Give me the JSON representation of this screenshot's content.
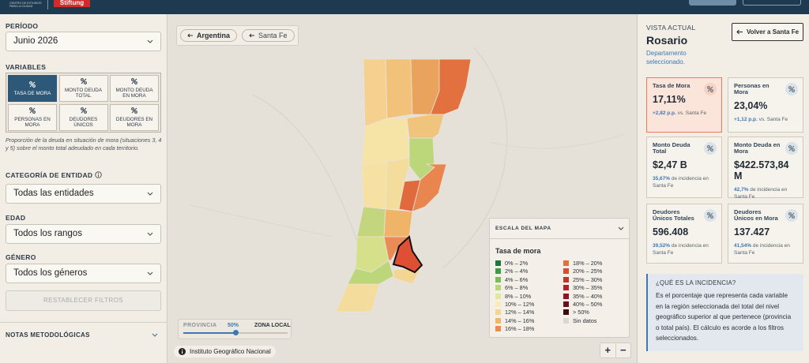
{
  "header": {
    "brand": "Stiftung",
    "org": "CENTRO DE ESTUDIOS PARA LA CIUDAD"
  },
  "sidebar": {
    "period_label": "PERÍODO",
    "period": "Junio 2026",
    "variables_label": "VARIABLES",
    "variables": [
      "TASA DE MORA",
      "MONTO DEUDA TOTAL",
      "MONTO DEUDA EN MORA",
      "PERSONAS EN MORA",
      "DEUDORES ÚNICOS",
      "DEUDORES EN MORA"
    ],
    "variable_description": "Proporción de la deuda en situación de mora (situaciones 3, 4 y 5) sobre el monto total adeudado en cada territorio.",
    "entity_label": "CATEGORÍA DE ENTIDAD",
    "entity": "Todas las entidades",
    "age_label": "EDAD",
    "age": "Todos los rangos",
    "gender_label": "GÉNERO",
    "gender": "Todos los géneros",
    "reset": "RESTABLECER FILTROS",
    "notes": "NOTAS METODOLÓGICAS"
  },
  "map": {
    "breadcrumbs": [
      "Argentina",
      "Santa Fe"
    ],
    "slider": {
      "left": "PROVINCIA",
      "value": "50%",
      "right": "ZONA LOCAL"
    },
    "attribution": "Instituto Geográfico Nacional",
    "zoom_in": "+",
    "zoom_out": "−",
    "legend": {
      "header": "ESCALA DEL MAPA",
      "title": "Tasa de mora",
      "items": [
        {
          "label": "0% – 2%",
          "color": "#1a7a3a"
        },
        {
          "label": "2% – 4%",
          "color": "#3f9a47"
        },
        {
          "label": "4% – 6%",
          "color": "#7cbb5c"
        },
        {
          "label": "6% – 8%",
          "color": "#b9d874"
        },
        {
          "label": "8% – 10%",
          "color": "#e3e89a"
        },
        {
          "label": "10% – 12%",
          "color": "#f8edb6"
        },
        {
          "label": "12% – 14%",
          "color": "#f5d68e"
        },
        {
          "label": "14% – 16%",
          "color": "#f1b66b"
        },
        {
          "label": "16% – 18%",
          "color": "#ea8d4f"
        },
        {
          "label": "18% – 20%",
          "color": "#e2703f"
        },
        {
          "label": "20% – 25%",
          "color": "#d84c30"
        },
        {
          "label": "25% – 30%",
          "color": "#c8322a"
        },
        {
          "label": "30% – 35%",
          "color": "#b02226"
        },
        {
          "label": "35% – 40%",
          "color": "#8e1520"
        },
        {
          "label": "40% – 50%",
          "color": "#6b0e1a"
        },
        {
          "label": "> 50%",
          "color": "#3f0710"
        },
        {
          "label": "Sin datos",
          "color": "#dcd8d0"
        }
      ]
    }
  },
  "panel": {
    "label": "VISTA ACTUAL",
    "place": "Rosario",
    "place_type": "Departamento seleccionado.",
    "back": "Volver a Santa Fe",
    "cards": [
      {
        "title": "Tasa de Mora",
        "value": "17,11%",
        "note_bold": "+2,82 p.p.",
        "note": "vs. Santa Fe"
      },
      {
        "title": "Personas en Mora",
        "value": "23,04%",
        "note_bold": "+1,12 p.p.",
        "note": "vs. Santa Fe"
      },
      {
        "title": "Monto Deuda Total",
        "value": "$2,47 B",
        "note_bold": "35,67%",
        "note": "de incidencia en Santa Fe"
      },
      {
        "title": "Monto Deuda en Mora",
        "value": "$422.573,84 M",
        "note_bold": "42,7%",
        "note": "de incidencia en Santa Fe"
      },
      {
        "title": "Deudores Únicos Totales",
        "value": "596.408",
        "note_bold": "39,52%",
        "note": "de incidencia en Santa Fe"
      },
      {
        "title": "Deudores Únicos en Mora",
        "value": "137.427",
        "note_bold": "41,54%",
        "note": "de incidencia en Santa Fe"
      }
    ],
    "info_title": "¿QUÉ ES LA INCIDENCIA?",
    "info_text": "Es el porcentaje que representa cada variable en la región seleccionada del total del nivel geográfico superior al que pertenece (provincia o total país). El cálculo es acorde a los filtros seleccionados."
  }
}
